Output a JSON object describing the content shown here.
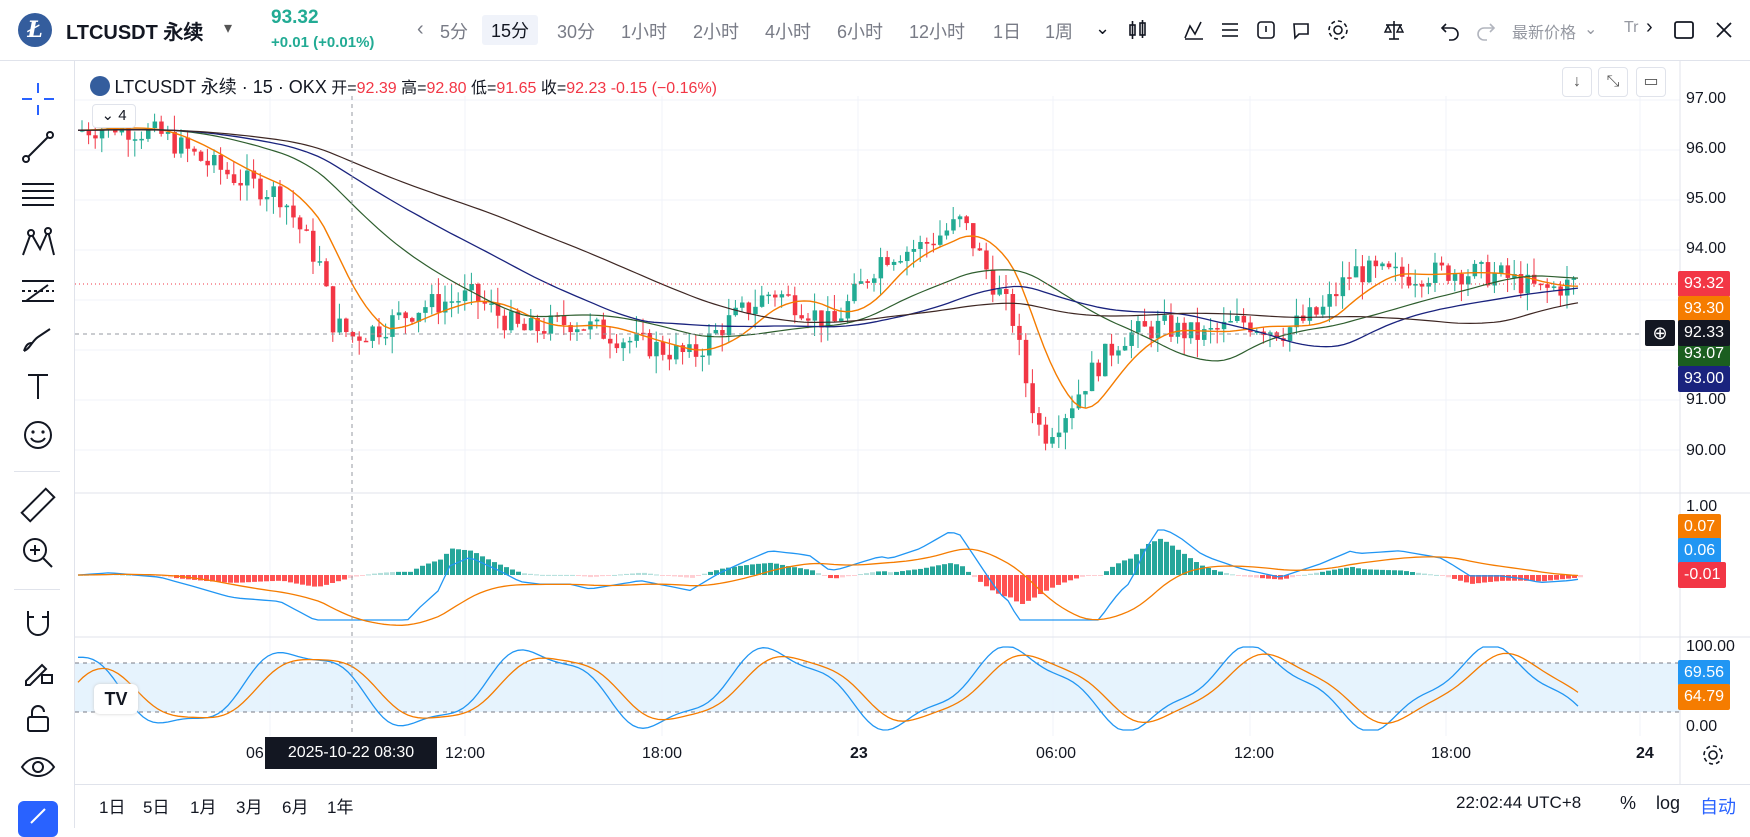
{
  "header": {
    "logo_letter": "Ł",
    "symbol": "LTCUSDT 永续",
    "price": "93.32",
    "change": "+0.01 (+0.01%)",
    "timeframes": [
      "5分",
      "15分",
      "30分",
      "1小时",
      "2小时",
      "4小时",
      "6小时",
      "12小时",
      "1日",
      "1周"
    ],
    "active_timeframe": "15分",
    "price_type": "最新价格",
    "trade_text": "Tr"
  },
  "legend": {
    "title": "LTCUSDT 永续 · 15 · OKX",
    "open_label": "开=",
    "open": "92.39",
    "high_label": "高=",
    "high": "92.80",
    "low_label": "低=",
    "low": "91.65",
    "close_label": "收=",
    "close": "92.23",
    "change": "-0.15 (−0.16%)",
    "collapse_count": "4"
  },
  "price_axis": {
    "ticks": [
      "97.00",
      "96.00",
      "95.00",
      "94.00",
      "91.00",
      "90.00"
    ],
    "labels": {
      "last": "93.32",
      "ma1": "93.30",
      "crosshair": "92.33",
      "ma2": "93.07",
      "ma3": "93.00"
    }
  },
  "macd_axis": {
    "top": "1.00",
    "labels": {
      "signal": "0.07",
      "macd": "0.06",
      "hist": "-0.01"
    }
  },
  "stoch_axis": {
    "top": "100.00",
    "bottom": "0.00",
    "labels": {
      "k": "69.56",
      "d": "64.79"
    }
  },
  "time_axis": {
    "labels": [
      "06",
      "12:00",
      "18:00",
      "23",
      "06:00",
      "12:00",
      "18:00",
      "24"
    ],
    "crosshair": "2025-10-22   08:30"
  },
  "footer": {
    "ranges": [
      "1日",
      "5日",
      "1月",
      "3月",
      "6月",
      "1年"
    ],
    "clock": "22:02:44 UTC+8",
    "percent": "%",
    "log": "log",
    "auto": "自动"
  },
  "colors": {
    "up": "#22ab94",
    "down": "#f23645",
    "ma_orange": "#f57c00",
    "ma_green": "#2e5e2e",
    "ma_navy": "#1a237e",
    "macd_blue": "#2196f3",
    "stoch_fill": "#e3f2fd"
  }
}
